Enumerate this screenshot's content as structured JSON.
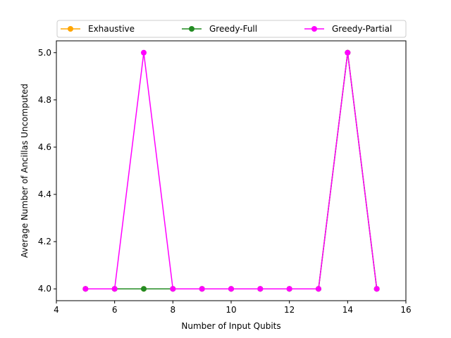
{
  "chart_data": {
    "type": "line",
    "title": "",
    "xlabel": "Number of Input Qubits",
    "ylabel": "Average Number of Ancillas Uncomputed",
    "xlim": [
      4,
      16
    ],
    "ylim": [
      3.95,
      5.05
    ],
    "xticks": [
      4,
      6,
      8,
      10,
      12,
      14,
      16
    ],
    "yticks": [
      4.0,
      4.2,
      4.4,
      4.6,
      4.8,
      5.0
    ],
    "xtick_labels": [
      "4",
      "6",
      "8",
      "10",
      "12",
      "14",
      "16"
    ],
    "ytick_labels": [
      "4.0",
      "4.2",
      "4.4",
      "4.6",
      "4.8",
      "5.0"
    ],
    "grid": false,
    "legend_placement": "top (above plot, 3 columns)",
    "x": [
      5,
      6,
      7,
      8,
      9,
      10,
      11,
      12,
      13,
      14,
      15
    ],
    "series": [
      {
        "name": "Exhaustive",
        "color": "#ffa500",
        "marker": "circle",
        "values": [
          4,
          4,
          4,
          4,
          4,
          4,
          4,
          4,
          4,
          5,
          4
        ]
      },
      {
        "name": "Greedy-Full",
        "color": "#228b22",
        "marker": "circle",
        "values": [
          4,
          4,
          4,
          4,
          4,
          4,
          4,
          4,
          4,
          5,
          4
        ]
      },
      {
        "name": "Greedy-Partial",
        "color": "#ff00ff",
        "marker": "circle",
        "values": [
          4,
          4,
          5,
          4,
          4,
          4,
          4,
          4,
          4,
          5,
          4
        ]
      }
    ]
  }
}
